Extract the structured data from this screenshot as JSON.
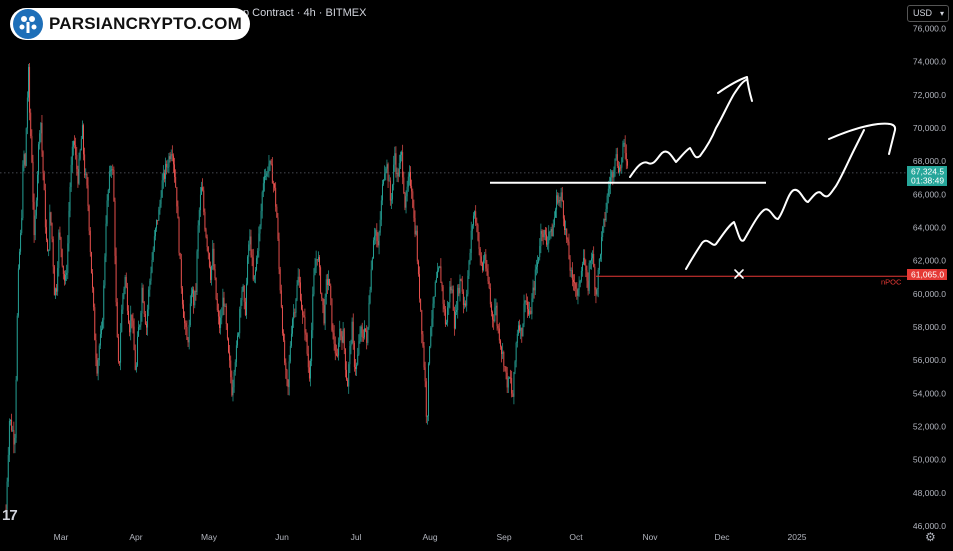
{
  "header": {
    "title": "Bitcoin / US Dollar Perpetual Inverse Swap Contract · 4h · BITMEX"
  },
  "watermark": {
    "text": "PARSIANCRYPTO.COM"
  },
  "currency_select": {
    "value": "USD"
  },
  "colors": {
    "background": "#000000",
    "up_candle": "#26a69a",
    "down_candle": "#ef5350",
    "last_price_badge": "#26a69a",
    "npoc_line": "#e53935",
    "annotation": "#ffffff"
  },
  "icons": {
    "tradingview_logo": "tradingview-logo-icon",
    "settings": "gear-icon",
    "dropdown": "chevron-down-icon"
  },
  "chart_data": {
    "type": "candlestick",
    "interval": "4h",
    "x_ticks": [
      "Mar",
      "Apr",
      "May",
      "Jun",
      "Jul",
      "Aug",
      "Sep",
      "Oct",
      "Nov",
      "Dec",
      "2025"
    ],
    "y_ticks": [
      "76,000.0",
      "74,000.0",
      "72,000.0",
      "70,000.0",
      "68,000.0",
      "66,000.0",
      "64,000.0",
      "62,000.0",
      "60,000.0",
      "58,000.0",
      "56,000.0",
      "54,000.0",
      "52,000.0",
      "50,000.0",
      "48,000.0",
      "46,000.0"
    ],
    "ylim": [
      45700,
      77000
    ],
    "grid": false,
    "price_path": [
      [
        47.2,
        47000
      ],
      [
        48.3,
        49000
      ],
      [
        50.4,
        52500
      ],
      [
        53.3,
        51800
      ],
      [
        55.4,
        51000
      ],
      [
        58.3,
        60500
      ],
      [
        59.8,
        62500
      ],
      [
        61.5,
        64000
      ],
      [
        63.6,
        69000
      ],
      [
        64.8,
        67000
      ],
      [
        66.3,
        70500
      ],
      [
        68.1,
        73500
      ],
      [
        69.2,
        71000
      ],
      [
        71.5,
        68000
      ],
      [
        73.5,
        63000
      ],
      [
        75.5,
        66000
      ],
      [
        77.4,
        68500
      ],
      [
        79.4,
        71000
      ],
      [
        80.5,
        69000
      ],
      [
        82.5,
        66500
      ],
      [
        84.5,
        63500
      ],
      [
        86.4,
        62000
      ],
      [
        88.4,
        65000
      ],
      [
        90.6,
        63000
      ],
      [
        92.5,
        60000
      ],
      [
        94.5,
        60500
      ],
      [
        96.5,
        63500
      ],
      [
        98.4,
        63000
      ],
      [
        100.5,
        61500
      ],
      [
        102.5,
        60500
      ],
      [
        104.4,
        62000
      ],
      [
        106.5,
        66000
      ],
      [
        108.6,
        68000
      ],
      [
        110.5,
        69500
      ],
      [
        112.5,
        68000
      ],
      [
        114.5,
        67000
      ],
      [
        116.5,
        68500
      ],
      [
        118.4,
        70000
      ],
      [
        120.5,
        67500
      ],
      [
        122.5,
        66500
      ],
      [
        124.3,
        65000
      ],
      [
        126.5,
        62000
      ],
      [
        128.6,
        59500
      ],
      [
        130.5,
        57000
      ],
      [
        132.4,
        55500
      ],
      [
        134.5,
        57000
      ],
      [
        136.5,
        57500
      ],
      [
        138.4,
        60000
      ],
      [
        140.6,
        64500
      ],
      [
        142.5,
        66000
      ],
      [
        144.5,
        67500
      ],
      [
        146.5,
        68000
      ],
      [
        148.3,
        65000
      ],
      [
        150.5,
        58000
      ],
      [
        152.6,
        55000
      ],
      [
        154.4,
        58000
      ],
      [
        156.4,
        60000
      ],
      [
        158.6,
        61000
      ],
      [
        160.5,
        59500
      ],
      [
        162.6,
        58000
      ],
      [
        164.5,
        59000
      ],
      [
        166.4,
        57000
      ],
      [
        168.6,
        55000
      ],
      [
        170.4,
        57500
      ],
      [
        172.5,
        58500
      ],
      [
        174.4,
        60500
      ],
      [
        176.5,
        59000
      ],
      [
        178.4,
        58000
      ],
      [
        180.4,
        60000
      ],
      [
        182.6,
        61500
      ],
      [
        184.5,
        62500
      ],
      [
        186.3,
        63500
      ],
      [
        188.5,
        64500
      ],
      [
        190.5,
        65000
      ],
      [
        192.4,
        66500
      ],
      [
        194.6,
        67000
      ],
      [
        196.4,
        67500
      ],
      [
        198.6,
        68000
      ],
      [
        200.5,
        68500
      ],
      [
        202.3,
        69000
      ],
      [
        204.4,
        67500
      ],
      [
        206.5,
        66000
      ],
      [
        208.4,
        63500
      ],
      [
        210.5,
        61000
      ],
      [
        212.3,
        59500
      ],
      [
        214.4,
        58000
      ],
      [
        216.4,
        57000
      ],
      [
        218.6,
        58000
      ],
      [
        220.6,
        60500
      ],
      [
        222.4,
        59500
      ],
      [
        224.5,
        60000
      ],
      [
        226.3,
        63500
      ],
      [
        228.3,
        65500
      ],
      [
        230.4,
        66500
      ],
      [
        232.5,
        64500
      ],
      [
        234.4,
        63500
      ],
      [
        236.4,
        62500
      ],
      [
        238.6,
        61000
      ],
      [
        240.3,
        62500
      ],
      [
        242.6,
        60500
      ],
      [
        244.4,
        59000
      ],
      [
        246.4,
        58000
      ],
      [
        248.4,
        58500
      ],
      [
        250.4,
        60000
      ],
      [
        252.4,
        58500
      ],
      [
        254.5,
        56500
      ],
      [
        256.5,
        55500
      ],
      [
        258.6,
        54000
      ],
      [
        260.6,
        56000
      ],
      [
        262.4,
        56500
      ],
      [
        264.6,
        58000
      ],
      [
        266.3,
        60000
      ],
      [
        268.4,
        60500
      ],
      [
        270.4,
        58500
      ],
      [
        272.6,
        61500
      ],
      [
        274.5,
        63500
      ],
      [
        276.5,
        62500
      ],
      [
        278.4,
        60500
      ],
      [
        280.6,
        61500
      ],
      [
        282.5,
        63000
      ],
      [
        284.6,
        64000
      ],
      [
        286.5,
        66000
      ],
      [
        288.5,
        67500
      ],
      [
        290.5,
        67000
      ],
      [
        292.4,
        68000
      ],
      [
        294.6,
        67500
      ],
      [
        296.4,
        67000
      ],
      [
        298.5,
        66000
      ],
      [
        300.4,
        64500
      ],
      [
        302.3,
        61500
      ],
      [
        304.4,
        59500
      ],
      [
        306.3,
        57000
      ],
      [
        308.6,
        55000
      ],
      [
        310.6,
        54000
      ],
      [
        312.3,
        56500
      ],
      [
        314.5,
        58500
      ],
      [
        316.5,
        59000
      ],
      [
        318.3,
        60000
      ],
      [
        320.4,
        61000
      ],
      [
        322.4,
        60000
      ],
      [
        324.4,
        58500
      ],
      [
        326.6,
        58000
      ],
      [
        328.5,
        56500
      ],
      [
        330.5,
        55000
      ],
      [
        332.3,
        57000
      ],
      [
        334.4,
        60500
      ],
      [
        336.5,
        62000
      ],
      [
        338.4,
        62500
      ],
      [
        340.4,
        61000
      ],
      [
        342.6,
        59500
      ],
      [
        344.6,
        58500
      ],
      [
        346.4,
        60500
      ],
      [
        348.5,
        61000
      ],
      [
        350.5,
        59500
      ],
      [
        352.3,
        57500
      ],
      [
        354.3,
        57000
      ],
      [
        356.5,
        55500
      ],
      [
        358.5,
        58000
      ],
      [
        360.3,
        57500
      ],
      [
        362.4,
        57500
      ],
      [
        364.6,
        55500
      ],
      [
        366.3,
        54500
      ],
      [
        368.4,
        56500
      ],
      [
        370.5,
        58000
      ],
      [
        372.3,
        56000
      ],
      [
        374.6,
        55500
      ],
      [
        376.4,
        56500
      ],
      [
        378.3,
        58000
      ],
      [
        380.4,
        57000
      ],
      [
        382.5,
        58500
      ],
      [
        384.5,
        56500
      ],
      [
        386.5,
        60000
      ],
      [
        388.5,
        61500
      ],
      [
        390.5,
        63500
      ],
      [
        392.4,
        64000
      ],
      [
        394.6,
        62500
      ],
      [
        396.3,
        64000
      ],
      [
        398.5,
        66000
      ],
      [
        400.3,
        67500
      ],
      [
        402.5,
        68000
      ],
      [
        404.5,
        67000
      ],
      [
        406.5,
        65500
      ],
      [
        408.3,
        66500
      ],
      [
        410.5,
        68500
      ],
      [
        412.4,
        67000
      ],
      [
        414.4,
        67500
      ],
      [
        416.6,
        68500
      ],
      [
        418.4,
        67000
      ],
      [
        420.4,
        65000
      ],
      [
        422.4,
        66500
      ],
      [
        424.3,
        67000
      ],
      [
        426.4,
        66500
      ],
      [
        428.3,
        64500
      ],
      [
        430.6,
        63500
      ],
      [
        432.3,
        61000
      ],
      [
        434.3,
        59500
      ],
      [
        436.6,
        57000
      ],
      [
        438.6,
        55000
      ],
      [
        440.5,
        52000
      ],
      [
        442.5,
        56500
      ],
      [
        444.3,
        58500
      ],
      [
        446.3,
        59000
      ],
      [
        448.4,
        60500
      ],
      [
        450.5,
        61000
      ],
      [
        452.3,
        61500
      ],
      [
        454.4,
        60500
      ],
      [
        456.5,
        59000
      ],
      [
        458.4,
        58000
      ],
      [
        460.5,
        59500
      ],
      [
        462.4,
        60500
      ],
      [
        464.4,
        60000
      ],
      [
        466.5,
        58000
      ],
      [
        468.3,
        59500
      ],
      [
        470.4,
        60500
      ],
      [
        472.4,
        61000
      ],
      [
        474.6,
        59500
      ],
      [
        476.6,
        59500
      ],
      [
        478.6,
        61000
      ],
      [
        480.3,
        62000
      ],
      [
        482.4,
        64000
      ],
      [
        484.6,
        65000
      ],
      [
        486.5,
        64500
      ],
      [
        488.3,
        63500
      ],
      [
        490.3,
        62000
      ],
      [
        492.4,
        61500
      ],
      [
        494.5,
        62500
      ],
      [
        496.3,
        61000
      ],
      [
        498.4,
        60500
      ],
      [
        500.3,
        59000
      ],
      [
        502.5,
        58500
      ],
      [
        504.5,
        59500
      ],
      [
        506.4,
        58000
      ],
      [
        508.4,
        57500
      ],
      [
        510.5,
        56500
      ],
      [
        512.6,
        56000
      ],
      [
        514.3,
        55000
      ],
      [
        516.3,
        54500
      ],
      [
        518.3,
        55000
      ],
      [
        520.4,
        53500
      ],
      [
        522.5,
        55500
      ],
      [
        524.3,
        57500
      ],
      [
        526.5,
        58500
      ],
      [
        528.5,
        57500
      ],
      [
        530.4,
        58500
      ],
      [
        532.3,
        60000
      ],
      [
        534.6,
        59000
      ],
      [
        536.3,
        58500
      ],
      [
        538.5,
        59500
      ],
      [
        540.6,
        60500
      ],
      [
        542.4,
        61500
      ],
      [
        544.3,
        62000
      ],
      [
        546.4,
        63500
      ],
      [
        548.3,
        64000
      ],
      [
        550.6,
        63500
      ],
      [
        552.5,
        63000
      ],
      [
        554.6,
        64000
      ],
      [
        556.4,
        63500
      ],
      [
        558.3,
        64000
      ],
      [
        560.4,
        65000
      ],
      [
        562.4,
        66000
      ],
      [
        564.6,
        65500
      ],
      [
        566.4,
        66000
      ],
      [
        568.6,
        64500
      ],
      [
        570.6,
        63500
      ],
      [
        572.6,
        62500
      ],
      [
        574.5,
        61500
      ],
      [
        576.3,
        60500
      ],
      [
        578.6,
        61000
      ],
      [
        580.5,
        60000
      ],
      [
        582.4,
        60000
      ],
      [
        584.4,
        61500
      ],
      [
        586.5,
        62500
      ],
      [
        588.3,
        61500
      ],
      [
        590.6,
        60000
      ],
      [
        592.5,
        62000
      ],
      [
        594.6,
        62500
      ],
      [
        596.4,
        61500
      ],
      [
        598.3,
        60000
      ],
      [
        600.3,
        61000
      ],
      [
        602.3,
        62500
      ],
      [
        604.4,
        63500
      ],
      [
        606.6,
        64500
      ],
      [
        608.4,
        65500
      ],
      [
        610.3,
        66500
      ],
      [
        612.4,
        67000
      ],
      [
        614.5,
        67500
      ],
      [
        616.3,
        68500
      ],
      [
        618.3,
        68000
      ],
      [
        620.6,
        67500
      ],
      [
        622.5,
        68000
      ],
      [
        624.3,
        69000
      ],
      [
        626.6,
        68500
      ],
      [
        628.4,
        67300
      ]
    ],
    "annotations": {
      "npoc_price": 61065,
      "npoc_label": "nPOC",
      "horizontal_level_price": 66700
    },
    "last_price": {
      "value": "67,324.5",
      "countdown": "01:38:49"
    },
    "npoc_badge": "61,065.0"
  }
}
